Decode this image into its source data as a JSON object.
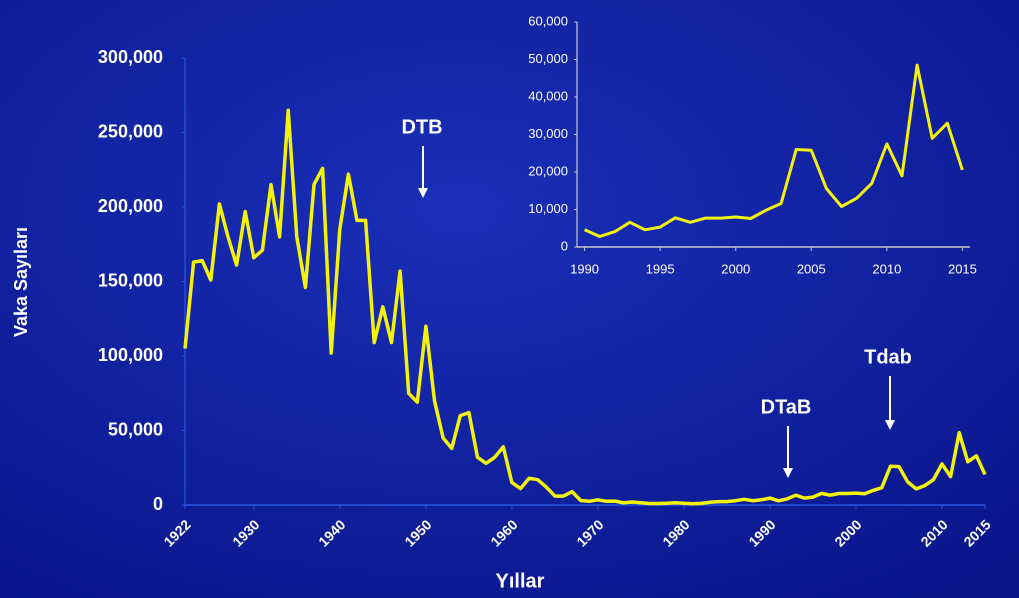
{
  "chart_data": [
    {
      "type": "line",
      "y_label": "Vaka Sayıları",
      "x_label": "Yıllar",
      "annotations": [
        "DTB",
        "DTaB",
        "Tdab"
      ],
      "x": [
        1922,
        1923,
        1924,
        1925,
        1926,
        1927,
        1928,
        1929,
        1930,
        1931,
        1932,
        1933,
        1934,
        1935,
        1936,
        1937,
        1938,
        1939,
        1940,
        1941,
        1942,
        1943,
        1944,
        1945,
        1946,
        1947,
        1948,
        1949,
        1950,
        1951,
        1952,
        1953,
        1954,
        1955,
        1956,
        1957,
        1958,
        1959,
        1960,
        1961,
        1962,
        1963,
        1964,
        1965,
        1966,
        1967,
        1968,
        1969,
        1970,
        1971,
        1972,
        1973,
        1974,
        1975,
        1976,
        1977,
        1978,
        1979,
        1980,
        1981,
        1982,
        1983,
        1984,
        1985,
        1986,
        1987,
        1988,
        1989,
        1990,
        1991,
        1992,
        1993,
        1994,
        1995,
        1996,
        1997,
        1998,
        1999,
        2000,
        2001,
        2002,
        2003,
        2004,
        2005,
        2006,
        2007,
        2008,
        2009,
        2010,
        2011,
        2012,
        2013,
        2014,
        2015
      ],
      "series": [
        {
          "color": "#f2f20a",
          "values": [
            105000,
            163000,
            164000,
            151000,
            202000,
            180000,
            161000,
            197000,
            166000,
            171000,
            215000,
            180000,
            265000,
            180000,
            146000,
            215000,
            226000,
            102000,
            185000,
            222000,
            191000,
            191000,
            109000,
            133000,
            109000,
            157000,
            75000,
            69000,
            120000,
            70000,
            45000,
            38000,
            60000,
            62000,
            32000,
            28000,
            32000,
            39000,
            15000,
            11000,
            18000,
            17000,
            12000,
            6000,
            6000,
            9000,
            3000,
            2500,
            3500,
            2500,
            2600,
            1500,
            2000,
            1500,
            1000,
            1000,
            1200,
            1500,
            1200,
            800,
            1100,
            1800,
            2300,
            2300,
            2900,
            3800,
            2900,
            3500,
            4600,
            2800,
            4100,
            6600,
            4600,
            5300,
            7800,
            6600,
            7700,
            7700,
            8000,
            7600,
            9800,
            11600,
            26000,
            25800,
            15600,
            10800,
            13000,
            17000,
            27500,
            19000,
            48500,
            29000,
            33000,
            20500
          ]
        }
      ],
      "xlim": [
        1922,
        2015
      ],
      "xticks": [
        1922,
        1930,
        1940,
        1950,
        1960,
        1970,
        1980,
        1990,
        2000,
        2010,
        2015
      ],
      "ylim": [
        0,
        300000
      ],
      "yticks": [
        0,
        {
          "value": 50000,
          "label": "50,000"
        },
        {
          "value": 100000,
          "label": "100,000"
        },
        {
          "value": 150000,
          "label": "150,000"
        },
        {
          "value": 200000,
          "label": "200,000"
        },
        {
          "value": 250000,
          "label": "250,000"
        },
        {
          "value": 300000,
          "label": "300,000"
        }
      ]
    },
    {
      "type": "line",
      "x": [
        1990,
        1991,
        1992,
        1993,
        1994,
        1995,
        1996,
        1997,
        1998,
        1999,
        2000,
        2001,
        2002,
        2003,
        2004,
        2005,
        2006,
        2007,
        2008,
        2009,
        2010,
        2011,
        2012,
        2013,
        2014,
        2015
      ],
      "series": [
        {
          "color": "#f2f20a",
          "values": [
            4600,
            2800,
            4100,
            6600,
            4600,
            5300,
            7800,
            6600,
            7700,
            7700,
            8000,
            7600,
            9800,
            11600,
            26000,
            25800,
            15600,
            10800,
            13000,
            17000,
            27500,
            19000,
            48500,
            29000,
            33000,
            20500
          ]
        }
      ],
      "xlim": [
        1989.5,
        2015.5
      ],
      "xticks": [
        1990,
        1995,
        2000,
        2005,
        2010,
        2015
      ],
      "ylim": [
        0,
        60000
      ],
      "yticks": [
        0,
        {
          "value": 10000,
          "label": "10,000"
        },
        {
          "value": 20000,
          "label": "20,000"
        },
        {
          "value": 30000,
          "label": "30,000"
        },
        {
          "value": 40000,
          "label": "40,000"
        },
        {
          "value": 50000,
          "label": "50,000"
        },
        {
          "value": 60000,
          "label": "60,000"
        }
      ]
    }
  ]
}
